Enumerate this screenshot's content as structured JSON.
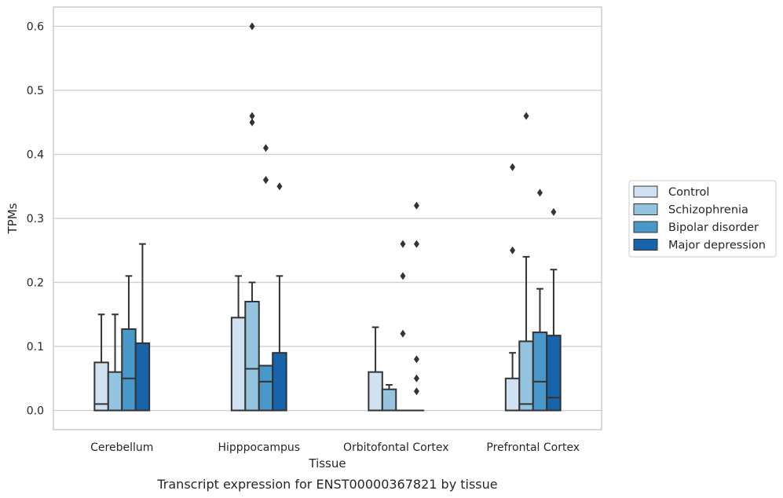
{
  "caption": "Transcript expression for ENST00000367821 by tissue",
  "colors": {
    "grid": "#cccccc",
    "frame": "#cccccc",
    "edge": "#333333"
  },
  "chart_data": {
    "type": "box",
    "xlabel": "Tissue",
    "ylabel": "TPMs",
    "ylim": [
      -0.03,
      0.63
    ],
    "yticks": [
      0.0,
      0.1,
      0.2,
      0.3,
      0.4,
      0.5,
      0.6
    ],
    "ytick_labels": [
      "0.0",
      "0.1",
      "0.2",
      "0.3",
      "0.4",
      "0.5",
      "0.6"
    ],
    "grid": true,
    "legend_position": "right",
    "categories": [
      "Cerebellum",
      "Hipppocampus",
      "Orbitofontal Cortex",
      "Prefrontal Cortex"
    ],
    "series": [
      {
        "name": "Control",
        "color": "#d0e1f2",
        "boxes": [
          {
            "q1": 0.0,
            "median": 0.01,
            "q3": 0.075,
            "whisker_low": 0.0,
            "whisker_high": 0.15,
            "outliers": []
          },
          {
            "q1": 0.0,
            "median": 0.0,
            "q3": 0.145,
            "whisker_low": 0.0,
            "whisker_high": 0.21,
            "outliers": []
          },
          {
            "q1": 0.0,
            "median": 0.0,
            "q3": 0.06,
            "whisker_low": 0.0,
            "whisker_high": 0.13,
            "outliers": []
          },
          {
            "q1": 0.0,
            "median": 0.0,
            "q3": 0.05,
            "whisker_low": 0.0,
            "whisker_high": 0.09,
            "outliers": [
              0.38,
              0.25
            ]
          }
        ]
      },
      {
        "name": "Schizophrenia",
        "color": "#94c4df",
        "boxes": [
          {
            "q1": 0.0,
            "median": 0.0,
            "q3": 0.06,
            "whisker_low": 0.0,
            "whisker_high": 0.15,
            "outliers": []
          },
          {
            "q1": 0.0,
            "median": 0.065,
            "q3": 0.17,
            "whisker_low": 0.0,
            "whisker_high": 0.2,
            "outliers": [
              0.6,
              0.46,
              0.45
            ]
          },
          {
            "q1": 0.0,
            "median": 0.0,
            "q3": 0.033,
            "whisker_low": 0.0,
            "whisker_high": 0.04,
            "outliers": []
          },
          {
            "q1": 0.0,
            "median": 0.01,
            "q3": 0.108,
            "whisker_low": 0.0,
            "whisker_high": 0.24,
            "outliers": [
              0.46
            ]
          }
        ]
      },
      {
        "name": "Bipolar disorder",
        "color": "#4a98c9",
        "boxes": [
          {
            "q1": 0.0,
            "median": 0.05,
            "q3": 0.127,
            "whisker_low": 0.0,
            "whisker_high": 0.21,
            "outliers": []
          },
          {
            "q1": 0.0,
            "median": 0.045,
            "q3": 0.07,
            "whisker_low": 0.0,
            "whisker_high": 0.07,
            "outliers": [
              0.41,
              0.36,
              0.36
            ]
          },
          {
            "q1": 0.0,
            "median": 0.0,
            "q3": 0.0,
            "whisker_low": 0.0,
            "whisker_high": 0.0,
            "outliers": [
              0.26,
              0.21,
              0.12
            ]
          },
          {
            "q1": 0.0,
            "median": 0.045,
            "q3": 0.122,
            "whisker_low": 0.0,
            "whisker_high": 0.19,
            "outliers": [
              0.34
            ]
          }
        ]
      },
      {
        "name": "Major depression",
        "color": "#1764ab",
        "boxes": [
          {
            "q1": 0.0,
            "median": 0.0,
            "q3": 0.105,
            "whisker_low": 0.0,
            "whisker_high": 0.26,
            "outliers": []
          },
          {
            "q1": 0.0,
            "median": 0.0,
            "q3": 0.09,
            "whisker_low": 0.0,
            "whisker_high": 0.21,
            "outliers": [
              0.35
            ]
          },
          {
            "q1": 0.0,
            "median": 0.0,
            "q3": 0.0,
            "whisker_low": 0.0,
            "whisker_high": 0.0,
            "outliers": [
              0.32,
              0.26,
              0.08,
              0.05,
              0.03
            ]
          },
          {
            "q1": 0.0,
            "median": 0.02,
            "q3": 0.117,
            "whisker_low": 0.0,
            "whisker_high": 0.22,
            "outliers": [
              0.31
            ]
          }
        ]
      }
    ]
  }
}
